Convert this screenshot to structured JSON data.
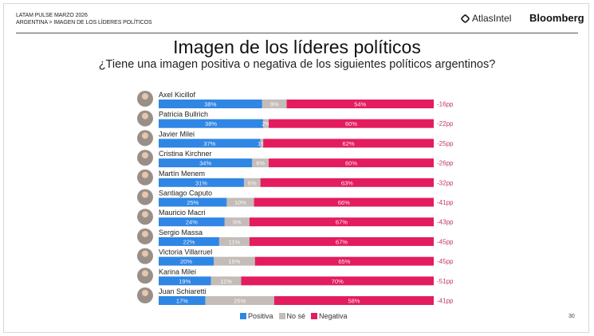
{
  "header": {
    "line1": "LATAM PULSE MARZO 2026",
    "line2": "ARGENTINA > IMAGEN DE LOS LÍDERES POLÍTICOS",
    "atlas": "AtlasIntel",
    "bloomberg": "Bloomberg"
  },
  "page_number": "30",
  "chart_data": {
    "type": "bar",
    "orientation": "horizontal-stacked-100",
    "title": "Imagen de los líderes políticos",
    "subtitle": "¿Tiene una imagen positiva o negativa de los siguientes políticos argentinos?",
    "categories": [
      "Axel Kicillof",
      "Patricia Bullrich",
      "Javier Milei",
      "Cristina Kirchner",
      "Martín Menem",
      "Santiago Caputo",
      "Mauricio Macri",
      "Sergio Massa",
      "Victoria Villarruel",
      "Karina Milei",
      "Juan Schiaretti"
    ],
    "series": [
      {
        "name": "Positiva",
        "color": "#2f86e4",
        "values": [
          38,
          38,
          37,
          34,
          31,
          25,
          24,
          22,
          20,
          19,
          17
        ]
      },
      {
        "name": "No sé",
        "color": "#c4bcb8",
        "values": [
          9,
          2,
          1,
          6,
          6,
          10,
          9,
          11,
          15,
          11,
          25
        ]
      },
      {
        "name": "Negativa",
        "color": "#e31c5f",
        "values": [
          54,
          60,
          62,
          60,
          63,
          66,
          67,
          67,
          65,
          70,
          58
        ]
      }
    ],
    "net": [
      "-16pp",
      "-22pp",
      "-25pp",
      "-26pp",
      "-32pp",
      "-41pp",
      "-43pp",
      "-45pp",
      "-45pp",
      "-51pp",
      "-41pp"
    ],
    "net_color": "#c0395e",
    "legend_position": "bottom"
  }
}
